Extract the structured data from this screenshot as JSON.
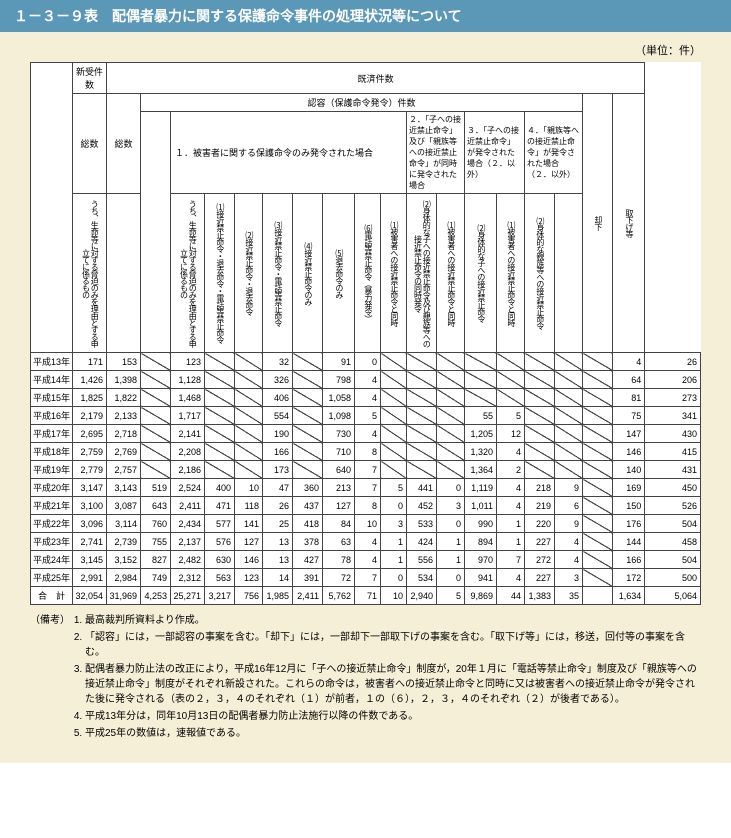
{
  "title": "１－３－９表　配偶者暴力に関する保護命令事件の処理状況等について",
  "unit": "（単位：件）",
  "header": {
    "shinjuken": "新受件数",
    "kisai": "既済件数",
    "sosu": "総数",
    "ninyo_main": "認容（保護命令発令）件数",
    "kyakka": "却下",
    "torisage": "取下げ等",
    "group1": "１．被害者に関する保護命令のみ発令された場合",
    "group2": "２．「子への接近禁止命令」及び「親族等への接近禁止命令」が同時に発令された場合",
    "group3": "３．「子への接近禁止命令」が発令された場合（２．以外）",
    "group4": "４．「親族等への接近禁止命令」が発令された場合（２．以外）",
    "col_uchi1": "うち、生命等に対する脅迫のみを理由とする申立てに係るもの",
    "col_uchi2": "うち、生命等に対する脅迫のみを理由とする申立てに係るもの",
    "col_1": "⑴接近禁止命令・退去命令・電話等禁止命令",
    "col_2": "⑵接近禁止命令・退去命令",
    "col_3": "⑶接近禁止命令・電話等禁止命令",
    "col_4": "⑷接近禁止命令のみ",
    "col_5": "⑸退去命令のみ",
    "col_6": "⑹電話等禁止命令（暴力発令）",
    "col_g2_1": "⑴被害者への接近禁止命令と同時",
    "col_g2_2": "⑵身体的な子への接近禁止命令及び親族等への接近禁止命令の同時発令",
    "col_g3_1": "⑴被害者への接近禁止命令と同時",
    "col_g3_2": "⑵身体的な子への接近禁止命令",
    "col_g4_1": "⑴被害者への接近禁止命令と同時",
    "col_g4_2": "⑵身体的な親族等への接近禁止命令"
  },
  "rows": [
    {
      "year": "平成13年",
      "c": [
        "171",
        "153",
        "",
        "123",
        "",
        "",
        "32",
        "",
        "91",
        "0",
        "",
        "",
        "",
        "",
        "",
        "",
        "",
        "",
        "4",
        "26"
      ]
    },
    {
      "year": "平成14年",
      "c": [
        "1,426",
        "1,398",
        "",
        "1,128",
        "",
        "",
        "326",
        "",
        "798",
        "4",
        "",
        "",
        "",
        "",
        "",
        "",
        "",
        "",
        "64",
        "206"
      ]
    },
    {
      "year": "平成15年",
      "c": [
        "1,825",
        "1,822",
        "",
        "1,468",
        "",
        "",
        "406",
        "",
        "1,058",
        "4",
        "",
        "",
        "",
        "",
        "",
        "",
        "",
        "",
        "81",
        "273"
      ]
    },
    {
      "year": "平成16年",
      "c": [
        "2,179",
        "2,133",
        "",
        "1,717",
        "",
        "",
        "554",
        "",
        "1,098",
        "5",
        "",
        "",
        "",
        "55",
        "5",
        "",
        "",
        "",
        "75",
        "341"
      ]
    },
    {
      "year": "平成17年",
      "c": [
        "2,695",
        "2,718",
        "",
        "2,141",
        "",
        "",
        "190",
        "",
        "730",
        "4",
        "",
        "",
        "",
        "1,205",
        "12",
        "",
        "",
        "",
        "147",
        "430"
      ]
    },
    {
      "year": "平成18年",
      "c": [
        "2,759",
        "2,769",
        "",
        "2,208",
        "",
        "",
        "166",
        "",
        "710",
        "8",
        "",
        "",
        "",
        "1,320",
        "4",
        "",
        "",
        "",
        "146",
        "415"
      ]
    },
    {
      "year": "平成19年",
      "c": [
        "2,779",
        "2,757",
        "",
        "2,186",
        "",
        "",
        "173",
        "",
        "640",
        "7",
        "",
        "",
        "",
        "1,364",
        "2",
        "",
        "",
        "",
        "140",
        "431"
      ]
    },
    {
      "year": "平成20年",
      "c": [
        "3,147",
        "3,143",
        "519",
        "2,524",
        "400",
        "10",
        "47",
        "360",
        "213",
        "7",
        "5",
        "441",
        "0",
        "1,119",
        "4",
        "218",
        "9",
        "",
        "169",
        "450"
      ]
    },
    {
      "year": "平成21年",
      "c": [
        "3,100",
        "3,087",
        "643",
        "2,411",
        "471",
        "118",
        "26",
        "437",
        "127",
        "8",
        "0",
        "452",
        "3",
        "1,011",
        "4",
        "219",
        "6",
        "",
        "150",
        "526"
      ]
    },
    {
      "year": "平成22年",
      "c": [
        "3,096",
        "3,114",
        "760",
        "2,434",
        "577",
        "141",
        "25",
        "418",
        "84",
        "10",
        "3",
        "533",
        "0",
        "990",
        "1",
        "220",
        "9",
        "",
        "176",
        "504"
      ]
    },
    {
      "year": "平成23年",
      "c": [
        "2,741",
        "2,739",
        "755",
        "2,137",
        "576",
        "127",
        "13",
        "378",
        "63",
        "4",
        "1",
        "424",
        "1",
        "894",
        "1",
        "227",
        "4",
        "",
        "144",
        "458"
      ]
    },
    {
      "year": "平成24年",
      "c": [
        "3,145",
        "3,152",
        "827",
        "2,482",
        "630",
        "146",
        "13",
        "427",
        "78",
        "4",
        "1",
        "556",
        "1",
        "970",
        "7",
        "272",
        "4",
        "",
        "166",
        "504"
      ]
    },
    {
      "year": "平成25年",
      "c": [
        "2,991",
        "2,984",
        "749",
        "2,312",
        "563",
        "123",
        "14",
        "391",
        "72",
        "7",
        "0",
        "534",
        "0",
        "941",
        "4",
        "227",
        "3",
        "",
        "172",
        "500"
      ]
    }
  ],
  "total": {
    "year": "合　計",
    "c": [
      "32,054",
      "31,969",
      "4,253",
      "25,271",
      "3,217",
      "756",
      "1,985",
      "2,411",
      "5,762",
      "71",
      "10",
      "2,940",
      "5",
      "9,869",
      "44",
      "1,383",
      "35",
      "",
      "1,634",
      "5,064"
    ]
  },
  "notes_label": "（備考）",
  "notes": [
    "最高裁判所資料より作成。",
    "「認容」には，一部認容の事案を含む。「却下」には，一部却下一部取下げの事案を含む。「取下げ等」には，移送，回付等の事案を含む。",
    "配偶者暴力防止法の改正により，平成16年12月に「子への接近禁止命令」制度が，20年１月に「電話等禁止命令」制度及び「親族等への接近禁止命令」制度がそれぞれ新設された。これらの命令は，被害者への接近禁止命令と同時に又は被害者への接近禁止命令が発令された後に発令される（表の２，３，４のそれぞれ（１）が前者，１の（６），２，３，４のそれぞれ（２）が後者である）。",
    "平成13年分は，同年10月13日の配偶者暴力防止法施行以降の件数である。",
    "平成25年の数値は，速報値である。"
  ]
}
